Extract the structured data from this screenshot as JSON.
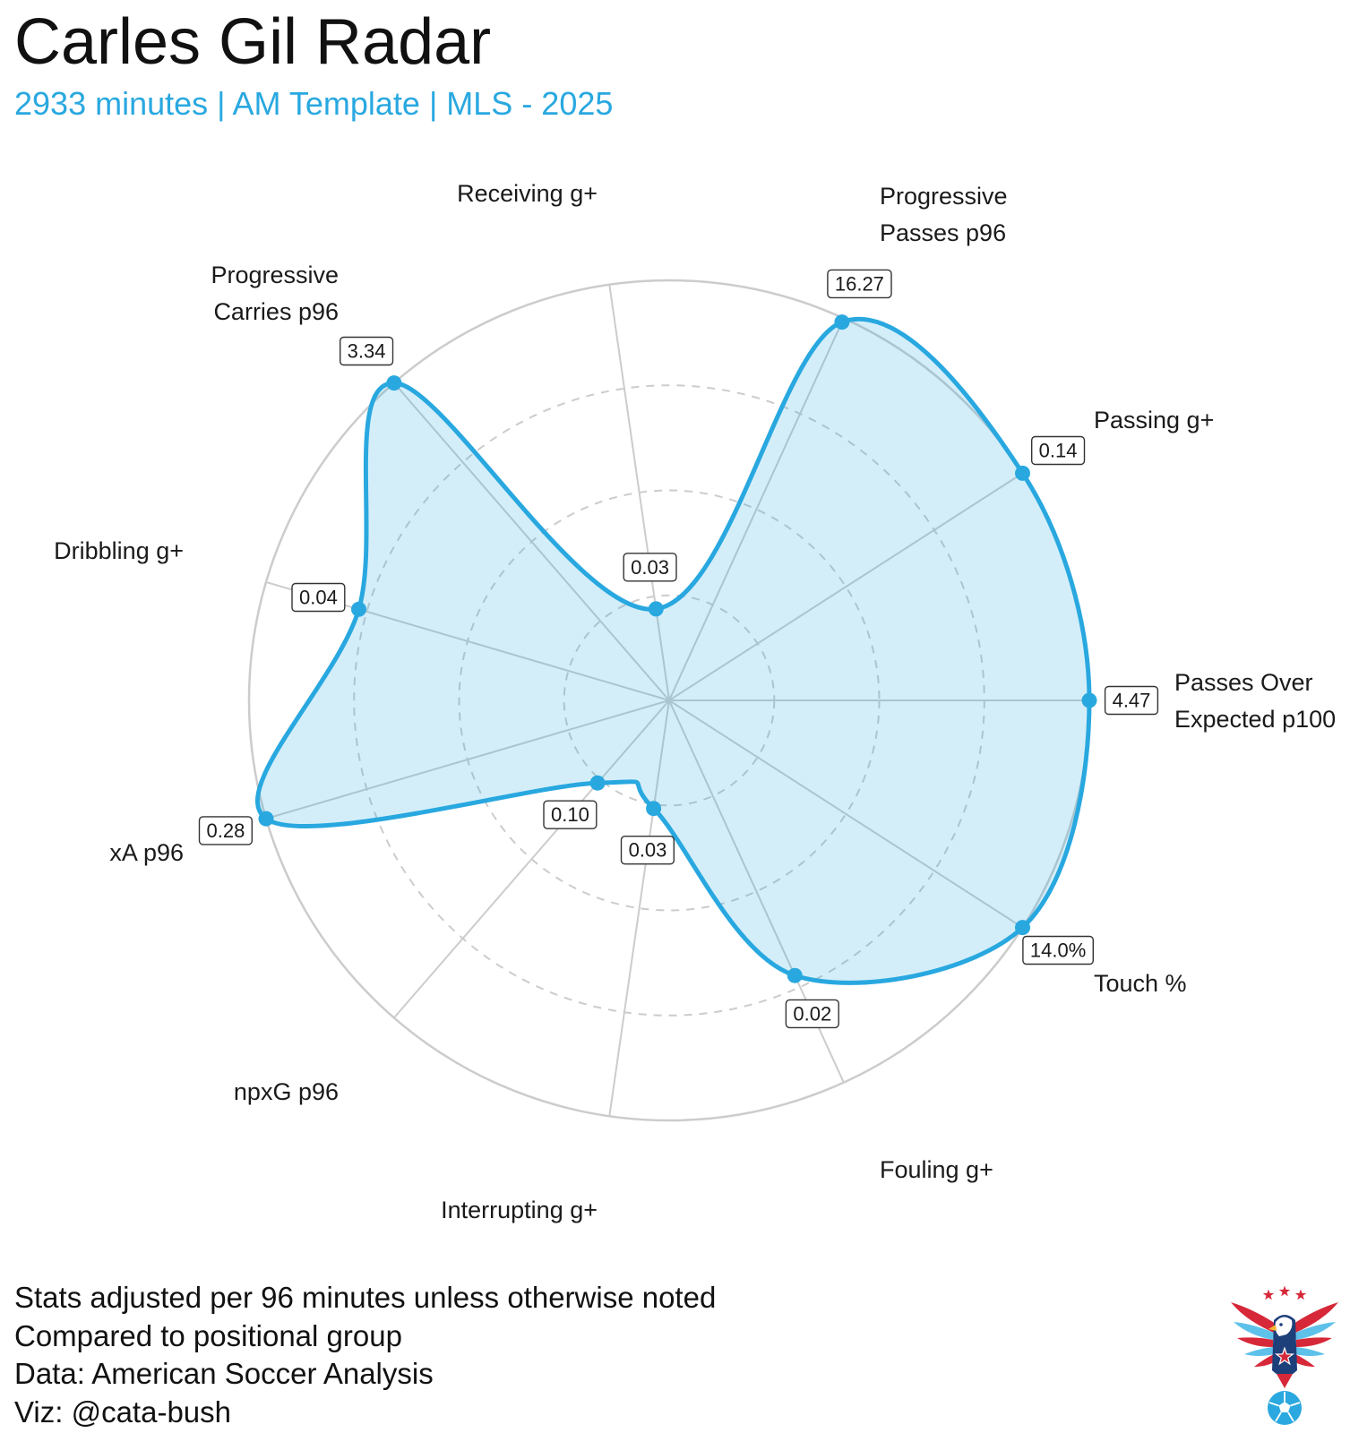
{
  "chart_data": {
    "type": "radar",
    "title": "Carles Gil Radar",
    "subtitle": "2933 minutes | AM Template | MLS - 2025",
    "rlim": [
      0,
      100
    ],
    "grid_levels": [
      25,
      50,
      75,
      100
    ],
    "axes": [
      {
        "label": [
          "Passes Over",
          "Expected p100"
        ],
        "value_label": "4.47",
        "percentile": 100
      },
      {
        "label": [
          "Passing g+"
        ],
        "value_label": "0.14",
        "percentile": 100
      },
      {
        "label": [
          "Progressive",
          "Passes p96"
        ],
        "value_label": "16.27",
        "percentile": 99
      },
      {
        "label": [
          "Receiving g+"
        ],
        "value_label": "0.03",
        "percentile": 22
      },
      {
        "label": [
          "Progressive",
          "Carries p96"
        ],
        "value_label": "3.34",
        "percentile": 100
      },
      {
        "label": [
          "Dribbling g+"
        ],
        "value_label": "0.04",
        "percentile": 77
      },
      {
        "label": [
          "xA p96"
        ],
        "value_label": "0.28",
        "percentile": 100
      },
      {
        "label": [
          "npxG p96"
        ],
        "value_label": "0.10",
        "percentile": 26
      },
      {
        "label": [
          "Interrupting g+"
        ],
        "value_label": "0.03",
        "percentile": 26
      },
      {
        "label": [
          "Fouling g+"
        ],
        "value_label": "0.02",
        "percentile": 72
      },
      {
        "label": [
          "Touch %"
        ],
        "value_label": "14.0%",
        "percentile": 100
      }
    ]
  },
  "notes": [
    "Stats adjusted per 96 minutes unless otherwise noted",
    "Compared to positional group",
    "Data: American Soccer Analysis",
    "Viz: @cata-bush"
  ],
  "colors": {
    "accent": "#29a8e0",
    "grid": "#cccccc",
    "text": "#111111",
    "box_border": "#333333"
  },
  "icons": {
    "logo": "eagle-soccer-crest-icon"
  }
}
